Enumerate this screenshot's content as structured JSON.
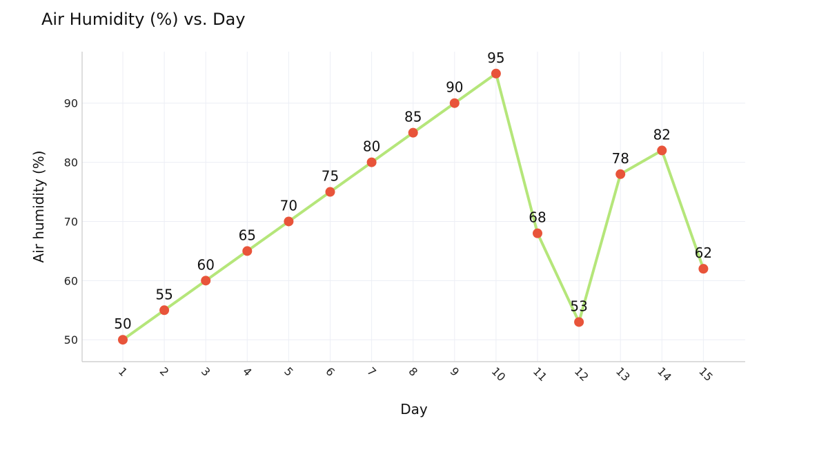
{
  "chart_data": {
    "type": "line",
    "title": "Air Humidity (%) vs. Day",
    "xlabel": "Day",
    "ylabel": "Air humidity (%)",
    "x": [
      "1",
      "2",
      "3",
      "4",
      "5",
      "6",
      "7",
      "8",
      "9",
      "10",
      "11",
      "12",
      "13",
      "14",
      "15"
    ],
    "series": [
      {
        "values": [
          50,
          55,
          60,
          65,
          70,
          75,
          80,
          85,
          90,
          95,
          68,
          53,
          78,
          82,
          62
        ]
      }
    ],
    "yticks": [
      50,
      60,
      70,
      80,
      90
    ],
    "ylim": [
      46.3,
      98.7
    ],
    "grid": true,
    "legend": "none",
    "colors": {
      "line": "#b5e67a",
      "marker": "#e8543a",
      "grid": "#eceef5",
      "axis": "#c8c8c8"
    }
  }
}
